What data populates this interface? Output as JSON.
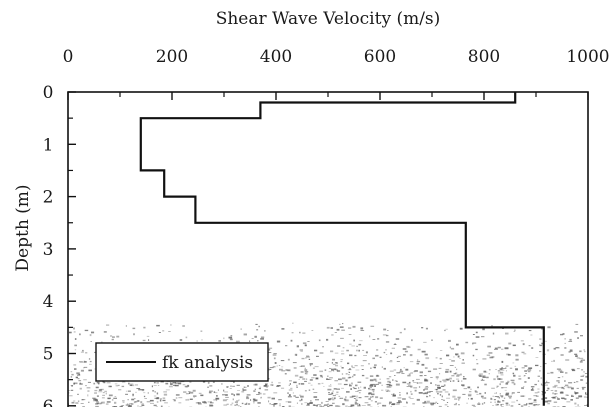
{
  "chart_data": {
    "type": "line",
    "title": "",
    "xlabel": "Shear Wave Velocity (m/s)",
    "ylabel": "Depth (m)",
    "x_axis_position": "top",
    "y_axis_inverted": true,
    "xlim": [
      0,
      1000
    ],
    "ylim": [
      0,
      6
    ],
    "xticks": [
      0,
      200,
      400,
      600,
      800,
      1000
    ],
    "yticks": [
      0,
      1,
      2,
      3,
      4,
      5,
      6
    ],
    "grid": false,
    "legend": {
      "position": "bottom-left",
      "entries": [
        "fk analysis"
      ]
    },
    "series": [
      {
        "name": "fk analysis",
        "style": "step",
        "color": "#111111",
        "points": [
          {
            "x": 860,
            "y": 0
          },
          {
            "x": 860,
            "y": 0.2
          },
          {
            "x": 370,
            "y": 0.2
          },
          {
            "x": 370,
            "y": 0.5
          },
          {
            "x": 140,
            "y": 0.5
          },
          {
            "x": 140,
            "y": 1.5
          },
          {
            "x": 185,
            "y": 1.5
          },
          {
            "x": 185,
            "y": 2.0
          },
          {
            "x": 245,
            "y": 2.0
          },
          {
            "x": 245,
            "y": 2.5
          },
          {
            "x": 765,
            "y": 2.5
          },
          {
            "x": 765,
            "y": 4.5
          },
          {
            "x": 915,
            "y": 4.5
          },
          {
            "x": 915,
            "y": 6
          }
        ]
      }
    ],
    "background_texture": "stippled gravel pattern below ~4.5 m"
  }
}
